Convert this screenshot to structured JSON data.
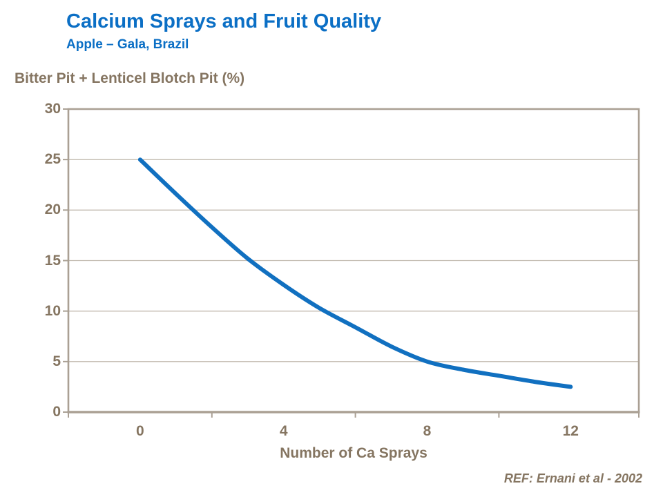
{
  "header": {
    "title": "Calcium Sprays and Fruit Quality",
    "subtitle": "Apple – Gala, Brazil"
  },
  "chart_heading": "Bitter Pit + Lenticel Blotch Pit (%)",
  "footer": {
    "reference": "REF: Ernani et al - 2002"
  },
  "colors": {
    "title_blue": "#0b6fc5",
    "line_blue": "#1170c0",
    "label_taupe": "#857561",
    "axis": "#aaa094",
    "gridline": "#c0b8ad"
  },
  "chart_data": {
    "type": "line",
    "title": "Calcium Sprays and Fruit Quality",
    "subtitle": "Apple – Gala, Brazil",
    "xlabel": "Number of Ca Sprays",
    "ylabel": "Bitter Pit + Lenticel Blotch Pit (%)",
    "xlim": [
      -2,
      13.9
    ],
    "ylim": [
      0,
      30
    ],
    "x_ticks": [
      0,
      4,
      8,
      12
    ],
    "x_minor_ticks": [
      2,
      6,
      10
    ],
    "y_ticks": [
      30,
      25,
      20,
      15,
      10,
      5,
      0
    ],
    "y_gridlines": [
      25,
      20,
      15,
      10,
      5
    ],
    "grid": "horizontal-only",
    "legend": "none",
    "series": [
      {
        "name": "Bitter Pit + Lenticel Blotch Pit (%)",
        "x": [
          0,
          1,
          2,
          3,
          4,
          5,
          6,
          7,
          8,
          9,
          10,
          11,
          12
        ],
        "y": [
          25,
          21.6,
          18.3,
          15.2,
          12.6,
          10.3,
          8.4,
          6.5,
          5.0,
          4.2,
          3.6,
          3.0,
          2.5
        ]
      }
    ]
  }
}
